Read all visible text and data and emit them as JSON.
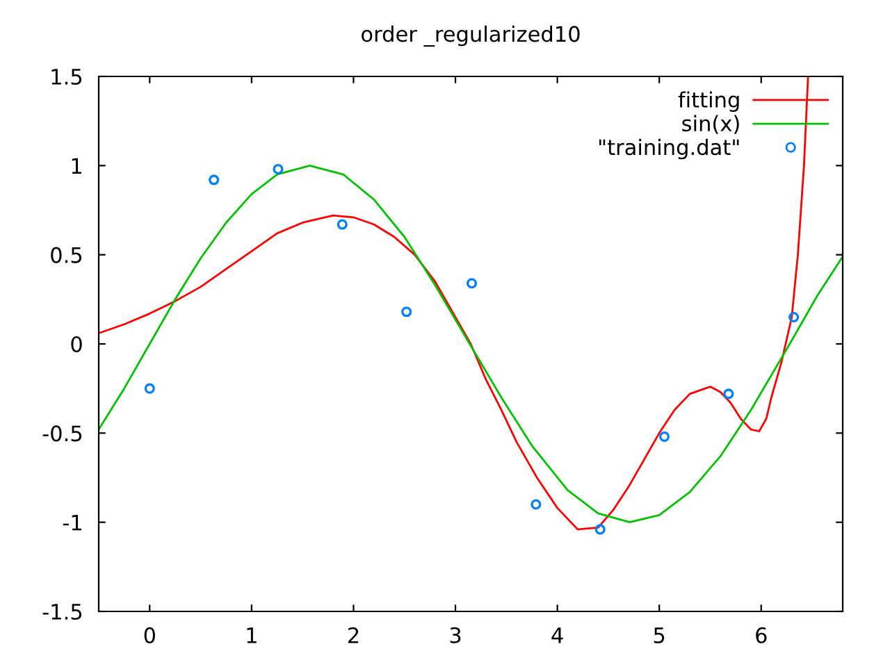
{
  "chart_data": {
    "type": "line",
    "title": "order _regularized10",
    "xlim": [
      -0.5,
      6.8
    ],
    "xticks": [
      0,
      1,
      2,
      3,
      4,
      5,
      6
    ],
    "ylim": [
      -1.5,
      1.5
    ],
    "yticks": [
      -1.5,
      -1,
      -0.5,
      0,
      0.5,
      1,
      1.5
    ],
    "grid": false,
    "legend": "top right",
    "series": [
      {
        "name": "fitting",
        "color": "#ff0000",
        "marker": "none",
        "x": [
          -0.5,
          -0.25,
          0,
          0.25,
          0.5,
          0.75,
          1,
          1.25,
          1.5,
          1.8,
          2,
          2.2,
          2.4,
          2.6,
          2.8,
          3.0,
          3.15,
          3.3,
          3.45,
          3.6,
          3.8,
          4.0,
          4.2,
          4.4,
          4.55,
          4.7,
          4.85,
          5.0,
          5.15,
          5.3,
          5.5,
          5.6,
          5.7,
          5.8,
          5.9,
          5.98,
          6.05,
          6.1,
          6.2,
          6.3,
          6.36,
          6.42,
          6.46
        ],
        "values": [
          0.06,
          0.11,
          0.17,
          0.24,
          0.32,
          0.42,
          0.52,
          0.62,
          0.68,
          0.72,
          0.71,
          0.67,
          0.6,
          0.5,
          0.35,
          0.15,
          0.0,
          -0.2,
          -0.37,
          -0.55,
          -0.75,
          -0.92,
          -1.04,
          -1.03,
          -0.93,
          -0.8,
          -0.65,
          -0.5,
          -0.37,
          -0.28,
          -0.24,
          -0.27,
          -0.33,
          -0.42,
          -0.48,
          -0.49,
          -0.42,
          -0.3,
          -0.1,
          0.15,
          0.5,
          1.0,
          1.5
        ]
      },
      {
        "name": "sin(x)",
        "color": "#00c000",
        "marker": "none",
        "x": [
          -0.5,
          -0.25,
          0,
          0.25,
          0.5,
          0.75,
          1,
          1.25,
          1.57,
          1.9,
          2.2,
          2.5,
          2.8,
          3.14,
          3.45,
          3.75,
          4.1,
          4.4,
          4.71,
          5.0,
          5.3,
          5.6,
          5.9,
          6.28,
          6.55,
          6.8
        ],
        "values": [
          -0.48,
          -0.25,
          0.0,
          0.25,
          0.48,
          0.68,
          0.84,
          0.95,
          1.0,
          0.95,
          0.81,
          0.6,
          0.33,
          0.0,
          -0.3,
          -0.57,
          -0.82,
          -0.95,
          -1.0,
          -0.96,
          -0.83,
          -0.63,
          -0.37,
          0.0,
          0.27,
          0.49
        ]
      },
      {
        "name": "\"training.dat\"",
        "color": "#0080ff",
        "type": "scatter",
        "marker": "circle",
        "x": [
          0,
          0.63,
          1.26,
          1.89,
          2.52,
          3.16,
          3.79,
          4.42,
          5.05,
          5.68,
          6.32
        ],
        "values": [
          -0.25,
          0.92,
          0.98,
          0.67,
          0.18,
          0.34,
          -0.9,
          -1.04,
          -0.52,
          -0.28,
          0.15
        ]
      }
    ]
  }
}
